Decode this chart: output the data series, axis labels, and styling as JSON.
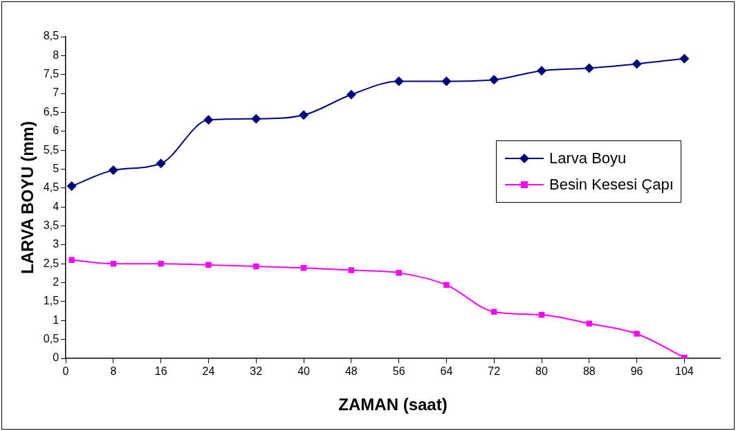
{
  "chart_data": {
    "type": "line",
    "xlabel": "ZAMAN (saat)",
    "ylabel": "LARVA BOYU (mm)",
    "x": [
      1,
      8,
      16,
      24,
      32,
      40,
      48,
      56,
      64,
      72,
      80,
      88,
      96,
      104
    ],
    "series": [
      {
        "name": "Larva Boyu",
        "color": "#000080",
        "marker": "diamond",
        "values": [
          4.55,
          4.97,
          5.15,
          6.3,
          6.33,
          6.43,
          6.97,
          7.32,
          7.32,
          7.36,
          7.6,
          7.67,
          7.78,
          7.92
        ]
      },
      {
        "name": "Besin Kesesi Çapı",
        "color": "#ff00ff",
        "marker": "square",
        "values": [
          2.6,
          2.5,
          2.5,
          2.47,
          2.43,
          2.39,
          2.33,
          2.26,
          1.94,
          1.23,
          1.15,
          0.92,
          0.65,
          0.02
        ]
      }
    ],
    "xlim": [
      0,
      110
    ],
    "xticks": [
      0,
      8,
      16,
      24,
      32,
      40,
      48,
      56,
      64,
      72,
      80,
      88,
      96,
      104
    ],
    "ylim": [
      0,
      8.5
    ],
    "yticks": [
      {
        "value": 0,
        "label": "0"
      },
      {
        "value": 0.5,
        "label": "0,5"
      },
      {
        "value": 1,
        "label": "1"
      },
      {
        "value": 1.5,
        "label": "1,5"
      },
      {
        "value": 2,
        "label": "2"
      },
      {
        "value": 2.5,
        "label": "2,5"
      },
      {
        "value": 3,
        "label": "3"
      },
      {
        "value": 3.5,
        "label": "3,5"
      },
      {
        "value": 4,
        "label": "4"
      },
      {
        "value": 4.5,
        "label": "4,5"
      },
      {
        "value": 5,
        "label": "5"
      },
      {
        "value": 5.5,
        "label": "5,5"
      },
      {
        "value": 6,
        "label": "6"
      },
      {
        "value": 6.5,
        "label": "6,5"
      },
      {
        "value": 7,
        "label": "7"
      },
      {
        "value": 7.5,
        "label": "7,5"
      },
      {
        "value": 8,
        "label": "8"
      },
      {
        "value": 8.5,
        "label": "8,5"
      }
    ],
    "grid": false,
    "legend": "right",
    "line_style": "solid"
  }
}
